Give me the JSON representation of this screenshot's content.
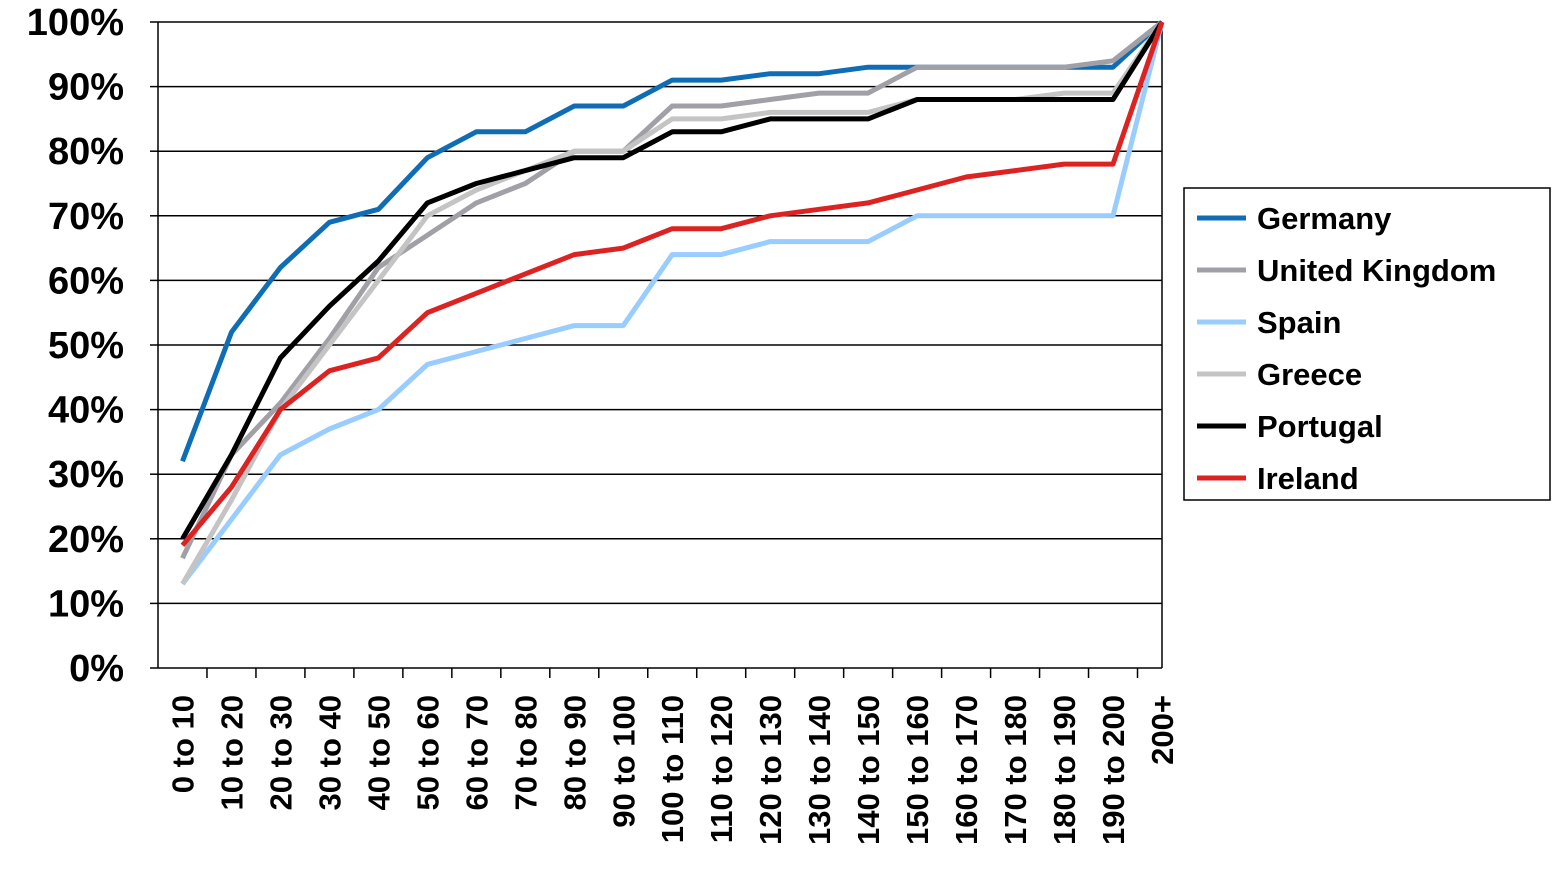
{
  "chart_data": {
    "type": "line",
    "title": "",
    "xlabel": "",
    "ylabel": "",
    "ylim": [
      0,
      100
    ],
    "ytick_step": 10,
    "ytick_suffix": "%",
    "grid": "horizontal",
    "legend_position": "right",
    "categories": [
      "0 to 10",
      "10 to 20",
      "20 to 30",
      "30 to 40",
      "40 to 50",
      "50 to 60",
      "60 to 70",
      "70 to 80",
      "80 to 90",
      "90 to 100",
      "100 to 110",
      "110 to 120",
      "120 to 130",
      "130 to 140",
      "140 to 150",
      "150 to 160",
      "160 to 170",
      "170 to 180",
      "180 to 190",
      "190 to 200",
      "200+"
    ],
    "series": [
      {
        "name": "Germany",
        "color": "#0f6db5",
        "values": [
          32,
          52,
          62,
          69,
          71,
          79,
          83,
          83,
          87,
          87,
          91,
          91,
          92,
          92,
          93,
          93,
          93,
          93,
          93,
          93,
          100
        ]
      },
      {
        "name": "United Kingdom",
        "color": "#a0a0a6",
        "values": [
          17,
          33,
          41,
          51,
          62,
          67,
          72,
          75,
          80,
          80,
          87,
          87,
          88,
          89,
          89,
          93,
          93,
          93,
          93,
          94,
          100
        ]
      },
      {
        "name": "Spain",
        "color": "#99ccff",
        "values": [
          13,
          23,
          33,
          37,
          40,
          47,
          49,
          51,
          53,
          53,
          64,
          64,
          66,
          66,
          66,
          70,
          70,
          70,
          70,
          70,
          100
        ]
      },
      {
        "name": "Greece",
        "color": "#c4c4c4",
        "values": [
          13,
          26,
          40,
          50,
          60,
          70,
          74,
          77,
          80,
          80,
          85,
          85,
          86,
          86,
          86,
          88,
          88,
          88,
          89,
          89,
          100
        ]
      },
      {
        "name": "Portugal",
        "color": "#000000",
        "values": [
          20,
          33,
          48,
          56,
          63,
          72,
          75,
          77,
          79,
          79,
          83,
          83,
          85,
          85,
          85,
          88,
          88,
          88,
          88,
          88,
          100
        ]
      },
      {
        "name": "Ireland",
        "color": "#dd2222",
        "values": [
          19,
          28,
          40,
          46,
          48,
          55,
          58,
          61,
          64,
          65,
          68,
          68,
          70,
          71,
          72,
          74,
          76,
          77,
          78,
          78,
          100
        ]
      }
    ]
  }
}
